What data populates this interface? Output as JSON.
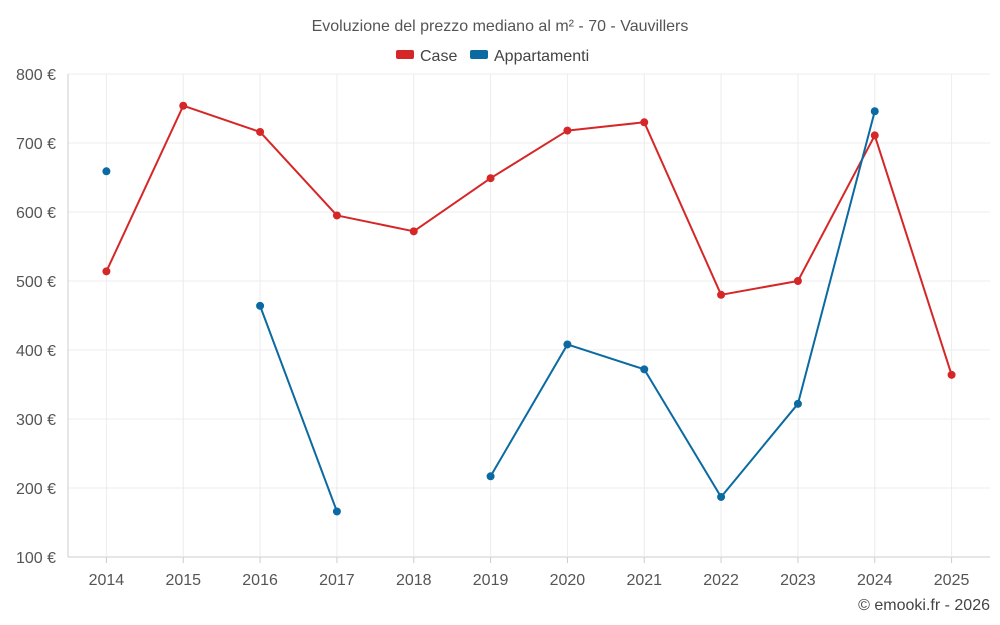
{
  "chart_data": {
    "type": "line",
    "title": "Evoluzione del prezzo mediano al m² - 70 - Vauvillers",
    "categories": [
      "2014",
      "2015",
      "2016",
      "2017",
      "2018",
      "2019",
      "2020",
      "2021",
      "2022",
      "2023",
      "2024",
      "2025"
    ],
    "series": [
      {
        "name": "Case",
        "color": "#d62728",
        "values": [
          514,
          754,
          716,
          595,
          572,
          649,
          718,
          730,
          480,
          500,
          711,
          364
        ]
      },
      {
        "name": "Appartamenti",
        "color": "#0a6aa1",
        "values": [
          659,
          null,
          464,
          166,
          null,
          217,
          408,
          372,
          187,
          322,
          746,
          null
        ]
      }
    ],
    "ylim": [
      100,
      800
    ],
    "yticks": [
      100,
      200,
      300,
      400,
      500,
      600,
      700,
      800
    ],
    "ytick_labels": [
      "100 €",
      "200 €",
      "300 €",
      "400 €",
      "500 €",
      "600 €",
      "700 €",
      "800 €"
    ],
    "xlabel": "",
    "ylabel": "",
    "legend_position": "top-center",
    "grid": true
  },
  "credit": "© emooki.fr - 2026"
}
